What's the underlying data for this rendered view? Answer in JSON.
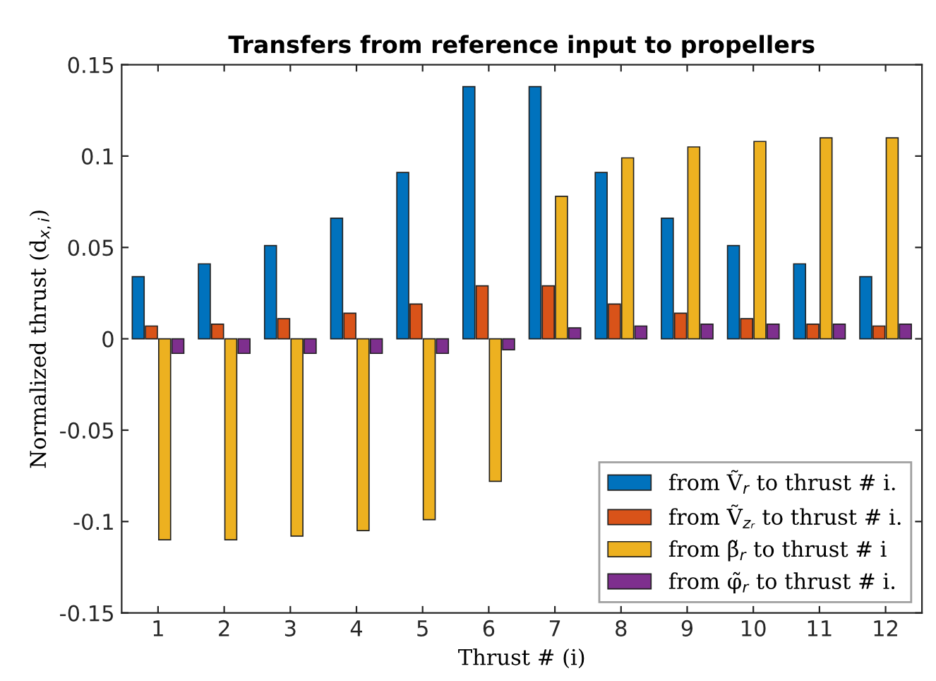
{
  "chart_data": {
    "type": "bar",
    "title": "Transfers from reference input to propellers",
    "xlabel": "Thrust # (i)",
    "ylabel": "Normalized thrust (d$_{x,i}$)",
    "categories": [
      "1",
      "2",
      "3",
      "4",
      "5",
      "6",
      "7",
      "8",
      "9",
      "10",
      "11",
      "12"
    ],
    "series": [
      {
        "name": "from Ṽ$_{r}$ to thrust # i.",
        "color": "#0072bd",
        "values": [
          0.034,
          0.041,
          0.051,
          0.066,
          0.091,
          0.138,
          0.138,
          0.091,
          0.066,
          0.051,
          0.041,
          0.034
        ]
      },
      {
        "name": "from Ṽ$_{zᵣ}$ to thrust # i.",
        "color": "#d95319",
        "values": [
          0.007,
          0.008,
          0.011,
          0.014,
          0.019,
          0.029,
          0.029,
          0.019,
          0.014,
          0.011,
          0.008,
          0.007
        ]
      },
      {
        "name": "from β̃$_{r}$ to thrust # i",
        "color": "#edb120",
        "values": [
          -0.11,
          -0.11,
          -0.108,
          -0.105,
          -0.099,
          -0.078,
          0.078,
          0.099,
          0.105,
          0.108,
          0.11,
          0.11
        ]
      },
      {
        "name": "from φ̃$_{r}$ to thrust # i.",
        "color": "#7e2f8e",
        "values": [
          -0.008,
          -0.008,
          -0.008,
          -0.008,
          -0.008,
          -0.006,
          0.006,
          0.007,
          0.008,
          0.008,
          0.008,
          0.008
        ]
      }
    ],
    "ylim": [
      -0.15,
      0.15
    ],
    "yticks": [
      {
        "value": -0.15,
        "label": "-0.15"
      },
      {
        "value": -0.1,
        "label": "-0.1"
      },
      {
        "value": -0.05,
        "label": "-0.05"
      },
      0,
      0.05,
      0.1,
      0.15
    ],
    "grid": false,
    "legend": "bottom right"
  }
}
